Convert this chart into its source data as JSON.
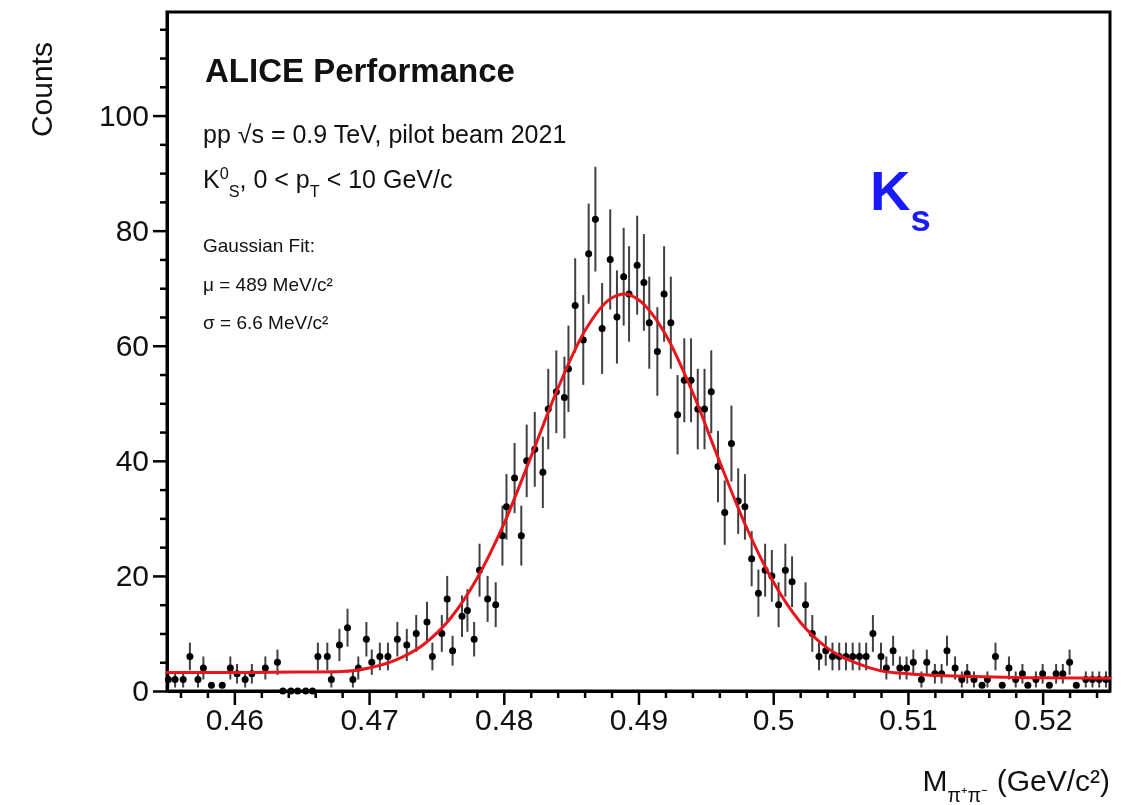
{
  "chart_data": {
    "type": "scatter",
    "xlabel": "M$_{π⁺π⁻}$ (GeV/c²)",
    "ylabel": "Counts",
    "annotations": [
      "ALICE Performance",
      "pp √s = 0.9 TeV, pilot beam 2021",
      "K$^{0}$$_{S}$,   0 < p$_{T}$ < 10 GeV/c",
      "Gaussian Fit:",
      "μ = 489 MeV/c²",
      "σ = 6.6 MeV/c²",
      "K$_{s}$"
    ],
    "xlim": [
      0.455,
      0.525
    ],
    "ylim": [
      0,
      118
    ],
    "xticks": [
      {
        "value": 0.456,
        "label": null
      },
      {
        "value": 0.458,
        "label": null
      },
      0.46,
      {
        "value": 0.462,
        "label": null
      },
      {
        "value": 0.464,
        "label": null
      },
      {
        "value": 0.466,
        "label": null
      },
      {
        "value": 0.468,
        "label": null
      },
      0.47,
      {
        "value": 0.472,
        "label": null
      },
      {
        "value": 0.474,
        "label": null
      },
      {
        "value": 0.476,
        "label": null
      },
      {
        "value": 0.478,
        "label": null
      },
      0.48,
      {
        "value": 0.482,
        "label": null
      },
      {
        "value": 0.484,
        "label": null
      },
      {
        "value": 0.486,
        "label": null
      },
      {
        "value": 0.488,
        "label": null
      },
      0.49,
      {
        "value": 0.492,
        "label": null
      },
      {
        "value": 0.494,
        "label": null
      },
      {
        "value": 0.496,
        "label": null
      },
      {
        "value": 0.498,
        "label": null
      },
      0.5,
      {
        "value": 0.502,
        "label": null
      },
      {
        "value": 0.504,
        "label": null
      },
      {
        "value": 0.506,
        "label": null
      },
      {
        "value": 0.508,
        "label": null
      },
      0.51,
      {
        "value": 0.512,
        "label": null
      },
      {
        "value": 0.514,
        "label": null
      },
      {
        "value": 0.516,
        "label": null
      },
      {
        "value": 0.518,
        "label": null
      },
      0.52,
      {
        "value": 0.522,
        "label": null
      },
      {
        "value": 0.524,
        "label": null
      }
    ],
    "yticks": [
      0,
      {
        "value": 5,
        "label": null
      },
      {
        "value": 10,
        "label": null
      },
      {
        "value": 15,
        "label": null
      },
      20,
      {
        "value": 25,
        "label": null
      },
      {
        "value": 30,
        "label": null
      },
      {
        "value": 35,
        "label": null
      },
      40,
      {
        "value": 45,
        "label": null
      },
      {
        "value": 50,
        "label": null
      },
      {
        "value": 55,
        "label": null
      },
      60,
      {
        "value": 65,
        "label": null
      },
      {
        "value": 70,
        "label": null
      },
      {
        "value": 75,
        "label": null
      },
      80,
      {
        "value": 85,
        "label": null
      },
      {
        "value": 90,
        "label": null
      },
      {
        "value": 95,
        "label": null
      },
      100,
      {
        "value": 105,
        "label": null
      },
      {
        "value": 110,
        "label": null
      },
      {
        "value": 115,
        "label": null
      }
    ],
    "grid": false,
    "series": [
      {
        "color": "#000000",
        "marker": "circle",
        "x": [
          0.4551,
          0.4556,
          0.4562,
          0.4567,
          0.4573,
          0.4577,
          0.4583,
          0.4591,
          0.4597,
          0.4602,
          0.4608,
          0.4613,
          0.4623,
          0.4632,
          0.4636,
          0.4642,
          0.4647,
          0.4653,
          0.4658,
          0.4662,
          0.4669,
          0.4672,
          0.4678,
          0.4684,
          0.4688,
          0.4692,
          0.4698,
          0.4702,
          0.4708,
          0.4714,
          0.4721,
          0.4728,
          0.4735,
          0.4743,
          0.4747,
          0.4754,
          0.4758,
          0.4762,
          0.4769,
          0.4773,
          0.4778,
          0.4782,
          0.4788,
          0.4794,
          0.4799,
          0.4802,
          0.4808,
          0.4813,
          0.4817,
          0.4823,
          0.4829,
          0.4833,
          0.4839,
          0.4845,
          0.4848,
          0.4853,
          0.4859,
          0.4863,
          0.4868,
          0.4873,
          0.4879,
          0.4884,
          0.4889,
          0.4893,
          0.4899,
          0.4904,
          0.4908,
          0.4914,
          0.4919,
          0.4924,
          0.4929,
          0.4934,
          0.4939,
          0.4944,
          0.4949,
          0.4954,
          0.4959,
          0.4964,
          0.4969,
          0.4974,
          0.4979,
          0.4984,
          0.4989,
          0.4994,
          0.4999,
          0.5004,
          0.5009,
          0.5014,
          0.5024,
          0.5029,
          0.5034,
          0.5039,
          0.5044,
          0.5049,
          0.5054,
          0.5059,
          0.5064,
          0.5069,
          0.5074,
          0.508,
          0.5084,
          0.5089,
          0.5094,
          0.5099,
          0.5104,
          0.511,
          0.5114,
          0.512,
          0.5125,
          0.5129,
          0.5135,
          0.514,
          0.5144,
          0.5149,
          0.5155,
          0.5159,
          0.5165,
          0.517,
          0.5175,
          0.518,
          0.5185,
          0.5189,
          0.5195,
          0.52,
          0.5205,
          0.521,
          0.5215,
          0.522,
          0.5225,
          0.5232,
          0.5237,
          0.5242,
          0.5247
        ],
        "values": [
          2,
          2,
          2,
          6,
          2,
          4,
          1,
          1,
          4,
          3,
          2,
          3,
          4,
          5,
          0,
          0,
          0,
          0,
          0,
          6,
          6,
          2,
          8,
          11,
          2,
          4,
          9,
          5,
          6,
          6,
          9,
          8,
          10,
          12,
          6,
          10,
          16,
          7,
          13,
          14,
          9,
          21,
          16,
          15,
          27,
          32,
          37,
          27,
          40,
          42,
          38,
          49,
          52,
          51,
          56,
          67,
          61,
          76,
          82,
          63,
          75,
          65,
          72,
          69,
          74,
          71,
          64,
          59,
          69,
          64,
          48,
          54,
          54,
          49,
          49,
          52,
          39,
          31,
          43,
          33,
          32,
          23,
          17,
          21,
          20,
          15,
          21,
          19,
          15,
          10,
          6,
          7,
          6,
          6,
          6,
          6,
          6,
          6,
          10,
          6,
          4,
          7,
          4,
          4,
          5,
          2,
          5,
          3,
          3,
          7,
          4,
          2,
          3,
          2,
          1,
          2,
          6,
          1,
          4,
          2,
          3,
          1,
          2,
          3,
          1,
          3,
          3,
          5,
          1,
          2,
          2,
          2,
          2
        ],
        "errors": [
          1.4,
          1.4,
          1.4,
          2.4,
          1.4,
          2,
          null,
          null,
          2,
          1.7,
          1.4,
          1.7,
          2,
          2.2,
          null,
          null,
          null,
          null,
          null,
          2.4,
          2.4,
          1.4,
          2.8,
          3.3,
          1.4,
          2,
          3,
          2.2,
          2.4,
          2.4,
          3,
          2.8,
          3.2,
          3.5,
          2.4,
          3.2,
          4,
          2.6,
          3.6,
          3.7,
          3,
          4.6,
          4,
          3.9,
          5.2,
          5.7,
          6.1,
          5.2,
          6.3,
          6.5,
          6.2,
          7,
          7.2,
          7.1,
          7.5,
          8.2,
          7.8,
          8.7,
          9.1,
          7.9,
          8.7,
          8.1,
          8.5,
          8.3,
          8.6,
          8.4,
          8,
          7.7,
          8.3,
          8,
          6.9,
          7.3,
          7.3,
          7,
          7,
          7.2,
          6.2,
          5.6,
          6.6,
          5.7,
          5.7,
          4.8,
          4.1,
          4.6,
          4.5,
          3.9,
          4.6,
          4.4,
          3.9,
          3.2,
          2.4,
          2.6,
          2.4,
          2.4,
          2.4,
          2.4,
          2.4,
          2.4,
          3.2,
          2.4,
          2,
          2.6,
          2,
          2,
          2.2,
          1.4,
          2.2,
          1.7,
          1.7,
          2.6,
          2,
          1.4,
          1.7,
          1.4,
          null,
          1.4,
          2.4,
          null,
          2,
          1.4,
          1.7,
          null,
          1.4,
          1.7,
          null,
          1.7,
          1.7,
          2.2,
          null,
          1.4,
          1.4,
          1.4,
          1.4
        ]
      },
      {
        "type": "line",
        "color": "#e8161c",
        "line_style": "solid",
        "x": [
          0.455,
          0.46,
          0.465,
          0.468,
          0.47,
          0.472,
          0.474,
          0.476,
          0.478,
          0.48,
          0.482,
          0.484,
          0.486,
          0.488,
          0.489,
          0.49,
          0.492,
          0.494,
          0.496,
          0.498,
          0.5,
          0.502,
          0.504,
          0.506,
          0.508,
          0.51,
          0.515,
          0.52,
          0.525
        ],
        "values": [
          3.2,
          3.2,
          3.3,
          3.4,
          4,
          5.4,
          8,
          12.5,
          19.5,
          29,
          40.6,
          52.5,
          62.5,
          68.3,
          69,
          68,
          62,
          52,
          40,
          28.5,
          19,
          12,
          7.5,
          5,
          3.5,
          3,
          2.5,
          2.3,
          2.2
        ]
      }
    ]
  }
}
